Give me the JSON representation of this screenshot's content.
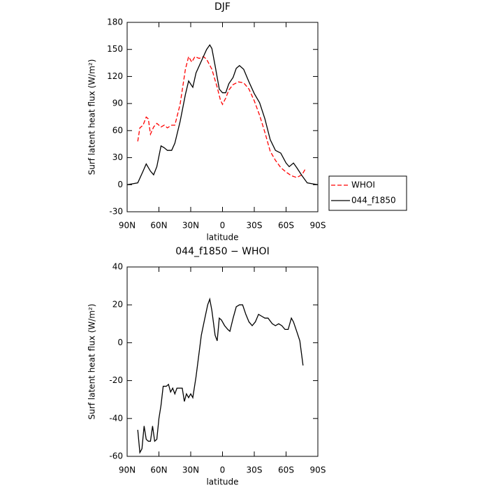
{
  "chart_data": [
    {
      "type": "line",
      "title": "DJF",
      "xlabel": "latitude",
      "ylabel": "Surf latent heat flux (W/m²)",
      "xlim": [
        90,
        -90
      ],
      "xticks": [
        {
          "value": 90,
          "label": "90N"
        },
        {
          "value": 60,
          "label": "60N"
        },
        {
          "value": 30,
          "label": "30N"
        },
        0,
        {
          "value": -30,
          "label": "30S"
        },
        {
          "value": -60,
          "label": "60S"
        },
        {
          "value": -90,
          "label": "90S"
        }
      ],
      "ylim": [
        -30,
        180
      ],
      "yticks": [
        -30,
        0,
        30,
        60,
        90,
        120,
        150,
        180
      ],
      "legend": "right",
      "series": [
        {
          "name": "WHOI",
          "color": "#ff0000",
          "linestyle": "dashed",
          "x": [
            80,
            78,
            75,
            72,
            70,
            68,
            65,
            62,
            58,
            55,
            52,
            48,
            45,
            40,
            35,
            32,
            29,
            26,
            22,
            18,
            15,
            10,
            5,
            2,
            0,
            -3,
            -6,
            -10,
            -15,
            -20,
            -25,
            -30,
            -35,
            -40,
            -45,
            -50,
            -55,
            -60,
            -65,
            -70,
            -75,
            -78
          ],
          "values": [
            48,
            63,
            66,
            75,
            73,
            56,
            64,
            68,
            64,
            66,
            63,
            66,
            66,
            89,
            128,
            142,
            136,
            142,
            140,
            142,
            139,
            128,
            108,
            94,
            89,
            96,
            105,
            111,
            114,
            113,
            106,
            93,
            77,
            58,
            37,
            27,
            19,
            14,
            10,
            8,
            11,
            17
          ]
        },
        {
          "name": "044_f1850",
          "color": "#000000",
          "linestyle": "solid",
          "x": [
            90,
            85,
            80,
            75,
            72,
            68,
            65,
            62,
            58,
            55,
            52,
            48,
            45,
            40,
            35,
            32,
            28,
            25,
            20,
            15,
            12,
            10,
            7,
            3,
            0,
            -3,
            -6,
            -10,
            -13,
            -16,
            -20,
            -25,
            -30,
            -35,
            -40,
            -45,
            -50,
            -55,
            -60,
            -63,
            -67,
            -70,
            -75,
            -80,
            -85,
            -90
          ],
          "values": [
            0,
            1,
            2,
            15,
            23,
            15,
            11,
            20,
            43,
            41,
            38,
            38,
            46,
            70,
            100,
            115,
            108,
            124,
            137,
            150,
            155,
            151,
            132,
            106,
            102,
            102,
            112,
            119,
            129,
            132,
            128,
            114,
            101,
            91,
            73,
            50,
            38,
            35,
            24,
            20,
            24,
            19,
            10,
            2,
            1,
            0
          ]
        }
      ]
    },
    {
      "type": "line",
      "title": "044_f1850 − WHOI",
      "xlabel": "latitude",
      "ylabel": "Surf latent heat flux (W/m²)",
      "xlim": [
        90,
        -90
      ],
      "xticks": [
        {
          "value": 90,
          "label": "90N"
        },
        {
          "value": 60,
          "label": "60N"
        },
        {
          "value": 30,
          "label": "30N"
        },
        0,
        {
          "value": -30,
          "label": "30S"
        },
        {
          "value": -60,
          "label": "60S"
        },
        {
          "value": -90,
          "label": "90S"
        }
      ],
      "ylim": [
        -60,
        40
      ],
      "yticks": [
        -60,
        -40,
        -20,
        0,
        20,
        40
      ],
      "series": [
        {
          "color": "#000000",
          "linestyle": "solid",
          "x": [
            80,
            78,
            76,
            74,
            72,
            70,
            68,
            66,
            64,
            62,
            60,
            58,
            56,
            53,
            51,
            49,
            47,
            45,
            43,
            40,
            38,
            36,
            34,
            32,
            30,
            28,
            25,
            22,
            20,
            17,
            14,
            12,
            10,
            7,
            5,
            3,
            1,
            -2,
            -5,
            -7,
            -10,
            -13,
            -16,
            -19,
            -22,
            -25,
            -28,
            -31,
            -34,
            -37,
            -40,
            -43,
            -47,
            -50,
            -53,
            -56,
            -59,
            -62,
            -65,
            -67,
            -70,
            -73,
            -76
          ],
          "values": [
            -46,
            -58,
            -56,
            -44,
            -51,
            -52,
            -52,
            -44,
            -52,
            -51,
            -40,
            -33,
            -23,
            -23,
            -22,
            -26,
            -24,
            -27,
            -24,
            -24,
            -24,
            -31,
            -27,
            -29,
            -27,
            -29,
            -18,
            -5,
            4,
            12,
            20,
            23,
            17,
            4,
            1,
            13,
            12,
            9,
            7,
            6,
            13,
            19,
            20,
            20,
            15,
            11,
            9,
            11,
            15,
            14,
            13,
            13,
            10,
            9,
            10,
            9,
            7,
            7,
            13,
            11,
            6,
            1,
            -12
          ]
        }
      ]
    }
  ]
}
